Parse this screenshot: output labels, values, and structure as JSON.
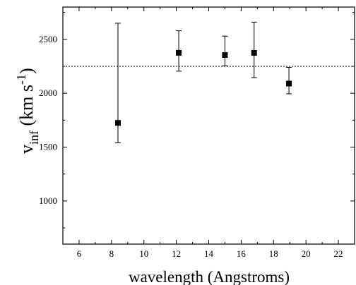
{
  "chart_data": {
    "type": "scatter",
    "xlabel": "wavelength (Angstroms)",
    "ylabel": {
      "main": "v",
      "subscript": "inf",
      "unit_open": " (km s",
      "superscript": "-1",
      "unit_close": ")"
    },
    "xlim": [
      5,
      23
    ],
    "ylim": [
      600,
      2800
    ],
    "xticks": [
      6,
      8,
      10,
      12,
      14,
      16,
      18,
      20,
      22
    ],
    "yticks": [
      1000,
      1500,
      2000,
      2500
    ],
    "grid": false,
    "legend": "none",
    "series": [
      {
        "points": [
          {
            "x": 8.4,
            "y": 1725,
            "ylow": 1540,
            "yhigh": 2650
          },
          {
            "x": 12.15,
            "y": 2375,
            "ylow": 2205,
            "yhigh": 2580
          },
          {
            "x": 15.0,
            "y": 2355,
            "ylow": 2255,
            "yhigh": 2530
          },
          {
            "x": 16.8,
            "y": 2375,
            "ylow": 2145,
            "yhigh": 2660
          },
          {
            "x": 18.95,
            "y": 2090,
            "ylow": 1995,
            "yhigh": 2240
          }
        ]
      }
    ],
    "reference_line": {
      "y": 2250,
      "style": "dotted"
    },
    "colors": {
      "marker": "#000000",
      "line": "#000000"
    }
  }
}
